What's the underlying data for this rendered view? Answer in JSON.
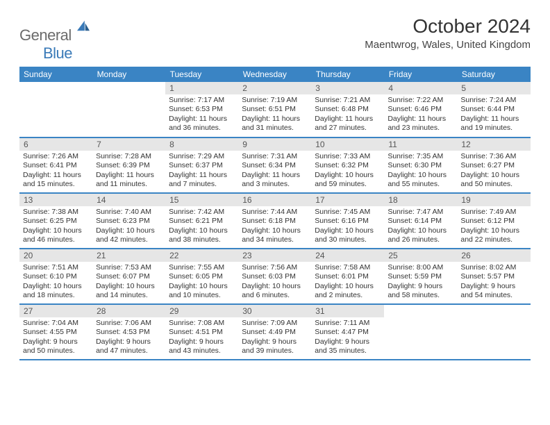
{
  "logo": {
    "text1": "General",
    "text2": "Blue"
  },
  "title": "October 2024",
  "location": "Maentwrog, Wales, United Kingdom",
  "colors": {
    "header_bg": "#3a84c4",
    "header_text": "#ffffff",
    "daynum_bg": "#e6e6e6",
    "border": "#3a84c4"
  },
  "day_headers": [
    "Sunday",
    "Monday",
    "Tuesday",
    "Wednesday",
    "Thursday",
    "Friday",
    "Saturday"
  ],
  "weeks": [
    [
      null,
      null,
      {
        "n": "1",
        "sr": "Sunrise: 7:17 AM",
        "ss": "Sunset: 6:53 PM",
        "dl1": "Daylight: 11 hours",
        "dl2": "and 36 minutes."
      },
      {
        "n": "2",
        "sr": "Sunrise: 7:19 AM",
        "ss": "Sunset: 6:51 PM",
        "dl1": "Daylight: 11 hours",
        "dl2": "and 31 minutes."
      },
      {
        "n": "3",
        "sr": "Sunrise: 7:21 AM",
        "ss": "Sunset: 6:48 PM",
        "dl1": "Daylight: 11 hours",
        "dl2": "and 27 minutes."
      },
      {
        "n": "4",
        "sr": "Sunrise: 7:22 AM",
        "ss": "Sunset: 6:46 PM",
        "dl1": "Daylight: 11 hours",
        "dl2": "and 23 minutes."
      },
      {
        "n": "5",
        "sr": "Sunrise: 7:24 AM",
        "ss": "Sunset: 6:44 PM",
        "dl1": "Daylight: 11 hours",
        "dl2": "and 19 minutes."
      }
    ],
    [
      {
        "n": "6",
        "sr": "Sunrise: 7:26 AM",
        "ss": "Sunset: 6:41 PM",
        "dl1": "Daylight: 11 hours",
        "dl2": "and 15 minutes."
      },
      {
        "n": "7",
        "sr": "Sunrise: 7:28 AM",
        "ss": "Sunset: 6:39 PM",
        "dl1": "Daylight: 11 hours",
        "dl2": "and 11 minutes."
      },
      {
        "n": "8",
        "sr": "Sunrise: 7:29 AM",
        "ss": "Sunset: 6:37 PM",
        "dl1": "Daylight: 11 hours",
        "dl2": "and 7 minutes."
      },
      {
        "n": "9",
        "sr": "Sunrise: 7:31 AM",
        "ss": "Sunset: 6:34 PM",
        "dl1": "Daylight: 11 hours",
        "dl2": "and 3 minutes."
      },
      {
        "n": "10",
        "sr": "Sunrise: 7:33 AM",
        "ss": "Sunset: 6:32 PM",
        "dl1": "Daylight: 10 hours",
        "dl2": "and 59 minutes."
      },
      {
        "n": "11",
        "sr": "Sunrise: 7:35 AM",
        "ss": "Sunset: 6:30 PM",
        "dl1": "Daylight: 10 hours",
        "dl2": "and 55 minutes."
      },
      {
        "n": "12",
        "sr": "Sunrise: 7:36 AM",
        "ss": "Sunset: 6:27 PM",
        "dl1": "Daylight: 10 hours",
        "dl2": "and 50 minutes."
      }
    ],
    [
      {
        "n": "13",
        "sr": "Sunrise: 7:38 AM",
        "ss": "Sunset: 6:25 PM",
        "dl1": "Daylight: 10 hours",
        "dl2": "and 46 minutes."
      },
      {
        "n": "14",
        "sr": "Sunrise: 7:40 AM",
        "ss": "Sunset: 6:23 PM",
        "dl1": "Daylight: 10 hours",
        "dl2": "and 42 minutes."
      },
      {
        "n": "15",
        "sr": "Sunrise: 7:42 AM",
        "ss": "Sunset: 6:21 PM",
        "dl1": "Daylight: 10 hours",
        "dl2": "and 38 minutes."
      },
      {
        "n": "16",
        "sr": "Sunrise: 7:44 AM",
        "ss": "Sunset: 6:18 PM",
        "dl1": "Daylight: 10 hours",
        "dl2": "and 34 minutes."
      },
      {
        "n": "17",
        "sr": "Sunrise: 7:45 AM",
        "ss": "Sunset: 6:16 PM",
        "dl1": "Daylight: 10 hours",
        "dl2": "and 30 minutes."
      },
      {
        "n": "18",
        "sr": "Sunrise: 7:47 AM",
        "ss": "Sunset: 6:14 PM",
        "dl1": "Daylight: 10 hours",
        "dl2": "and 26 minutes."
      },
      {
        "n": "19",
        "sr": "Sunrise: 7:49 AM",
        "ss": "Sunset: 6:12 PM",
        "dl1": "Daylight: 10 hours",
        "dl2": "and 22 minutes."
      }
    ],
    [
      {
        "n": "20",
        "sr": "Sunrise: 7:51 AM",
        "ss": "Sunset: 6:10 PM",
        "dl1": "Daylight: 10 hours",
        "dl2": "and 18 minutes."
      },
      {
        "n": "21",
        "sr": "Sunrise: 7:53 AM",
        "ss": "Sunset: 6:07 PM",
        "dl1": "Daylight: 10 hours",
        "dl2": "and 14 minutes."
      },
      {
        "n": "22",
        "sr": "Sunrise: 7:55 AM",
        "ss": "Sunset: 6:05 PM",
        "dl1": "Daylight: 10 hours",
        "dl2": "and 10 minutes."
      },
      {
        "n": "23",
        "sr": "Sunrise: 7:56 AM",
        "ss": "Sunset: 6:03 PM",
        "dl1": "Daylight: 10 hours",
        "dl2": "and 6 minutes."
      },
      {
        "n": "24",
        "sr": "Sunrise: 7:58 AM",
        "ss": "Sunset: 6:01 PM",
        "dl1": "Daylight: 10 hours",
        "dl2": "and 2 minutes."
      },
      {
        "n": "25",
        "sr": "Sunrise: 8:00 AM",
        "ss": "Sunset: 5:59 PM",
        "dl1": "Daylight: 9 hours",
        "dl2": "and 58 minutes."
      },
      {
        "n": "26",
        "sr": "Sunrise: 8:02 AM",
        "ss": "Sunset: 5:57 PM",
        "dl1": "Daylight: 9 hours",
        "dl2": "and 54 minutes."
      }
    ],
    [
      {
        "n": "27",
        "sr": "Sunrise: 7:04 AM",
        "ss": "Sunset: 4:55 PM",
        "dl1": "Daylight: 9 hours",
        "dl2": "and 50 minutes."
      },
      {
        "n": "28",
        "sr": "Sunrise: 7:06 AM",
        "ss": "Sunset: 4:53 PM",
        "dl1": "Daylight: 9 hours",
        "dl2": "and 47 minutes."
      },
      {
        "n": "29",
        "sr": "Sunrise: 7:08 AM",
        "ss": "Sunset: 4:51 PM",
        "dl1": "Daylight: 9 hours",
        "dl2": "and 43 minutes."
      },
      {
        "n": "30",
        "sr": "Sunrise: 7:09 AM",
        "ss": "Sunset: 4:49 PM",
        "dl1": "Daylight: 9 hours",
        "dl2": "and 39 minutes."
      },
      {
        "n": "31",
        "sr": "Sunrise: 7:11 AM",
        "ss": "Sunset: 4:47 PM",
        "dl1": "Daylight: 9 hours",
        "dl2": "and 35 minutes."
      },
      null,
      null
    ]
  ]
}
